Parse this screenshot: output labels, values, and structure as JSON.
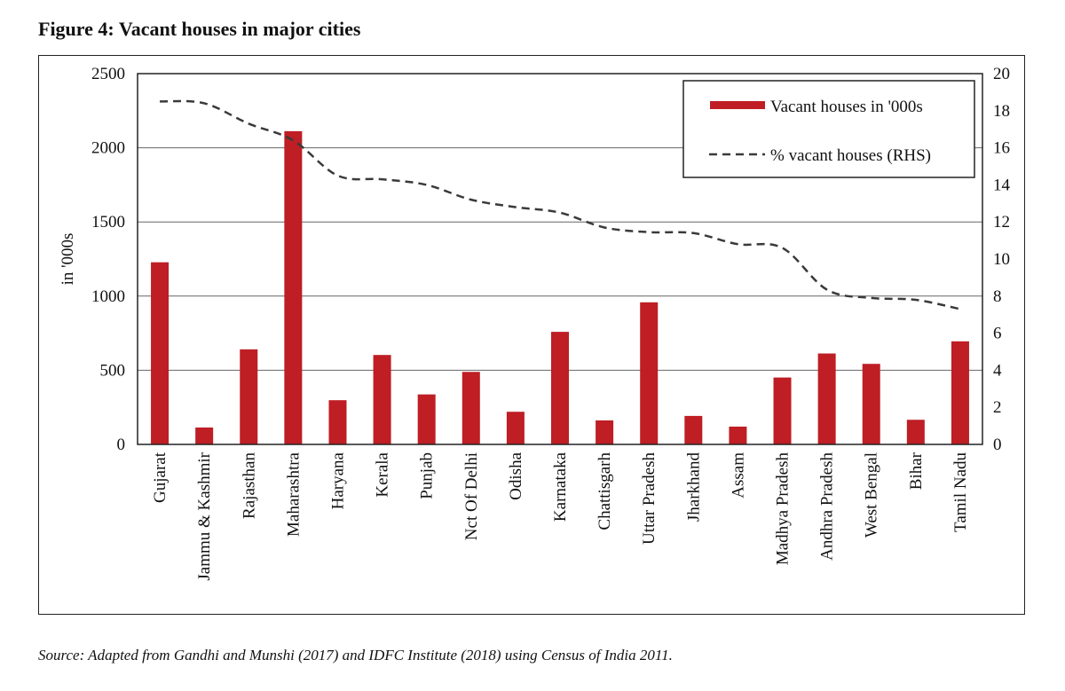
{
  "title": "Figure 4: Vacant houses in major cities",
  "source": "Source: Adapted from Gandhi and Munshi (2017) and IDFC Institute (2018) using Census of India 2011.",
  "colors": {
    "bar": "#be1e24",
    "line": "#3a3a3a",
    "grid": "#666666"
  },
  "chart_data": {
    "type": "bar",
    "title": "Vacant houses in major cities",
    "xlabel": "",
    "ylabel": "in '000s",
    "ylim": [
      0,
      2500
    ],
    "y2lim": [
      0,
      20
    ],
    "yticks": [
      0,
      500,
      1000,
      1500,
      2000,
      2500
    ],
    "y2ticks": [
      0,
      2,
      4,
      6,
      8,
      10,
      12,
      14,
      16,
      18,
      20
    ],
    "grid": true,
    "legend_position": "top-right",
    "categories": [
      "Gujarat",
      "Jammu & Kashmir",
      "Rajasthan",
      "Maharashtra",
      "Haryana",
      "Kerala",
      "Punjab",
      "Nct Of Delhi",
      "Odisha",
      "Karnataka",
      "Chattisgarh",
      "Uttar Pradesh",
      "Jharkhand",
      "Assam",
      "Madhya Pradesh",
      "Andhra Pradesh",
      "West Bengal",
      "Bihar",
      "Tamil Nadu"
    ],
    "series": [
      {
        "name": "Vacant houses in '000s",
        "type": "bar",
        "axis": "left",
        "values": [
          1228,
          114,
          641,
          2112,
          298,
          603,
          337,
          489,
          220,
          759,
          162,
          958,
          192,
          120,
          451,
          613,
          543,
          166,
          695
        ]
      },
      {
        "name": "% vacant houses (RHS)",
        "type": "line",
        "style": "dashed",
        "axis": "right",
        "values": [
          18.5,
          18.4,
          17.3,
          16.4,
          14.5,
          14.3,
          14.0,
          13.2,
          12.8,
          12.5,
          11.7,
          11.45,
          11.4,
          10.8,
          10.6,
          8.35,
          7.9,
          7.8,
          7.3
        ]
      }
    ]
  }
}
